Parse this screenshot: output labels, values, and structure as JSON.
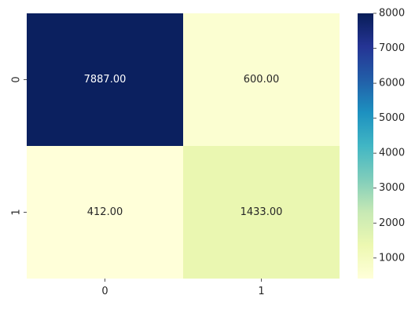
{
  "chart_data": {
    "type": "heatmap",
    "title": "",
    "xlabel": "",
    "ylabel": "",
    "x_categories": [
      "0",
      "1"
    ],
    "y_categories": [
      "0",
      "1"
    ],
    "values": [
      [
        7887,
        600
      ],
      [
        412,
        1433
      ]
    ],
    "annotations": [
      [
        "7887.00",
        "600.00"
      ],
      [
        "412.00",
        "1433.00"
      ]
    ],
    "colormap": "YlGnBu",
    "colorbar": {
      "range": [
        412,
        8000
      ],
      "ticks": [
        1000,
        2000,
        3000,
        4000,
        5000,
        6000,
        7000,
        8000
      ],
      "tick_labels": [
        "1000",
        "2000",
        "3000",
        "4000",
        "5000",
        "6000",
        "7000",
        "8000"
      ]
    },
    "grid": false,
    "legend": "colorbar-right"
  }
}
